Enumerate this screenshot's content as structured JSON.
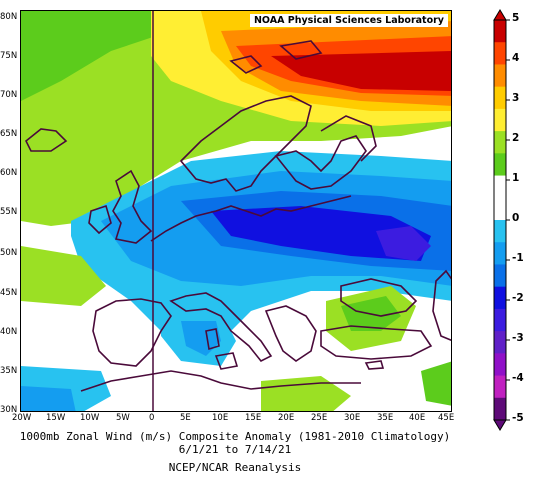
{
  "map": {
    "credit": "NOAA Physical Sciences Laboratory",
    "latitude_labels": [
      "80N",
      "75N",
      "70N",
      "65N",
      "60N",
      "55N",
      "50N",
      "45N",
      "40N",
      "35N",
      "30N"
    ],
    "longitude_labels": [
      "20W",
      "15W",
      "10W",
      "5W",
      "0",
      "5E",
      "10E",
      "15E",
      "20E",
      "25E",
      "30E",
      "35E",
      "40E",
      "45E"
    ],
    "region": "Europe"
  },
  "caption": {
    "line1": "1000mb Zonal Wind (m/s) Composite Anomaly (1981-2010 Climatology)",
    "line2": "6/1/21 to 7/14/21",
    "line3": "NCEP/NCAR Reanalysis"
  },
  "colorbar": {
    "labels": [
      "5",
      "4",
      "3",
      "2",
      "1",
      "0",
      "-1",
      "-2",
      "-3",
      "-4",
      "-5"
    ],
    "colors": [
      "#c80000",
      "#ff4500",
      "#ff8c00",
      "#ffcc00",
      "#ffee33",
      "#9be024",
      "#5ccc1c",
      "#ffffff",
      "#ffffff",
      "#28c2f0",
      "#149df0",
      "#0a70e8",
      "#1010e0",
      "#3c1ce0",
      "#6020c8",
      "#9010c8",
      "#c020c0",
      "#5e0a78"
    ]
  },
  "colors": {
    "strong_positive": "#c80000",
    "positive": "#ff8c00",
    "weak_positive": "#9be024",
    "neutral": "#ffffff",
    "weak_negative": "#28c2f0",
    "negative": "#0a70e8",
    "strong_negative": "#3c1ce0",
    "coastline": "#4a0a3a"
  }
}
